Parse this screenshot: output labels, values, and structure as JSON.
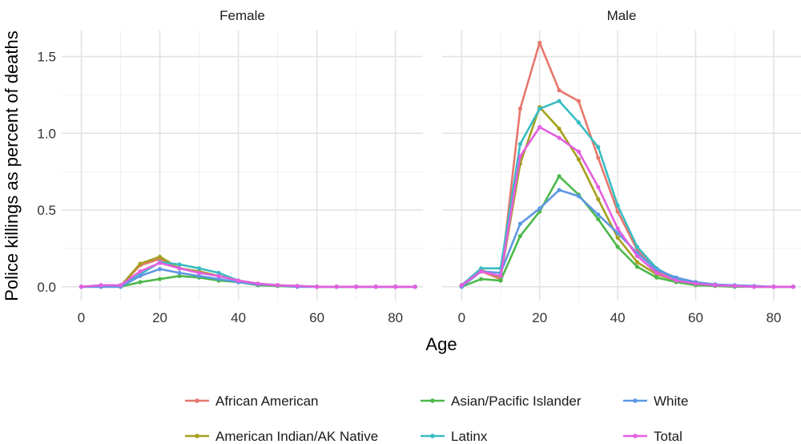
{
  "chart_data": {
    "type": "line",
    "facets": [
      "Female",
      "Male"
    ],
    "xlabel": "Age",
    "ylabel": "Police killings as percent of deaths",
    "xlim": [
      -5,
      87
    ],
    "ylim": [
      -0.09,
      1.67
    ],
    "x_ticks": [
      0,
      20,
      40,
      60,
      80
    ],
    "y_ticks": [
      0.0,
      0.5,
      1.0,
      1.5
    ],
    "y_tick_labels": [
      "0.0",
      "0.5",
      "1.0",
      "1.5"
    ],
    "grid": true,
    "legend_position": "bottom",
    "x": [
      0,
      5,
      10,
      15,
      20,
      25,
      30,
      35,
      40,
      45,
      50,
      55,
      60,
      65,
      70,
      75,
      80,
      85
    ],
    "series": [
      {
        "name": "African American",
        "color": "#e7776d",
        "female": [
          0,
          0.005,
          0.005,
          0.14,
          0.18,
          0.12,
          0.1,
          0.07,
          0.04,
          0.02,
          0.01,
          0.005,
          0,
          0,
          0,
          0,
          0,
          0
        ],
        "male": [
          0.01,
          0.1,
          0.05,
          1.16,
          1.59,
          1.28,
          1.21,
          0.84,
          0.49,
          0.24,
          0.1,
          0.05,
          0.02,
          0.01,
          0.005,
          0,
          0,
          0
        ]
      },
      {
        "name": "American Indian/AK Native",
        "color": "#a5a01f",
        "female": [
          0,
          0.005,
          0.005,
          0.15,
          0.195,
          0.12,
          0.1,
          0.07,
          0.04,
          0.02,
          0.01,
          0.005,
          0,
          0,
          0,
          0,
          0,
          0
        ],
        "male": [
          0.01,
          0.11,
          0.06,
          0.8,
          1.17,
          1.03,
          0.83,
          0.57,
          0.32,
          0.16,
          0.08,
          0.04,
          0.02,
          0.01,
          0.005,
          0,
          0,
          0
        ]
      },
      {
        "name": "Asian/Pacific Islander",
        "color": "#4cb84a",
        "female": [
          0,
          0,
          0,
          0.03,
          0.05,
          0.07,
          0.06,
          0.04,
          0.03,
          0.01,
          0.005,
          0,
          0,
          0,
          0,
          0,
          0,
          0
        ],
        "male": [
          0,
          0.05,
          0.04,
          0.33,
          0.49,
          0.72,
          0.6,
          0.44,
          0.26,
          0.13,
          0.06,
          0.03,
          0.01,
          0.005,
          0,
          0,
          0,
          0
        ]
      },
      {
        "name": "Latinx",
        "color": "#39bcc3",
        "female": [
          0,
          0.01,
          0.01,
          0.08,
          0.16,
          0.145,
          0.12,
          0.09,
          0.04,
          0.02,
          0.01,
          0.005,
          0,
          0,
          0,
          0,
          0,
          0
        ],
        "male": [
          0.01,
          0.12,
          0.12,
          0.93,
          1.16,
          1.21,
          1.07,
          0.91,
          0.53,
          0.26,
          0.12,
          0.05,
          0.02,
          0.01,
          0.005,
          0,
          0,
          0
        ]
      },
      {
        "name": "White",
        "color": "#5e97e3",
        "female": [
          0,
          0,
          0,
          0.07,
          0.115,
          0.09,
          0.07,
          0.05,
          0.03,
          0.015,
          0.01,
          0,
          0,
          0,
          0,
          0,
          0,
          0
        ],
        "male": [
          0,
          0.1,
          0.09,
          0.41,
          0.51,
          0.63,
          0.59,
          0.47,
          0.35,
          0.22,
          0.11,
          0.06,
          0.03,
          0.015,
          0.01,
          0.005,
          0,
          0
        ]
      },
      {
        "name": "Total",
        "color": "#e45ee0",
        "female": [
          0,
          0.01,
          0.01,
          0.1,
          0.155,
          0.12,
          0.09,
          0.07,
          0.04,
          0.02,
          0.01,
          0.005,
          0,
          0,
          0,
          0,
          0,
          0
        ],
        "male": [
          0.01,
          0.1,
          0.07,
          0.85,
          1.04,
          0.97,
          0.88,
          0.65,
          0.38,
          0.2,
          0.09,
          0.04,
          0.02,
          0.01,
          0.005,
          0,
          0,
          0
        ]
      }
    ],
    "legend_order": [
      "African American",
      "Asian/Pacific Islander",
      "White",
      "American Indian/AK Native",
      "Latinx",
      "Total"
    ]
  }
}
